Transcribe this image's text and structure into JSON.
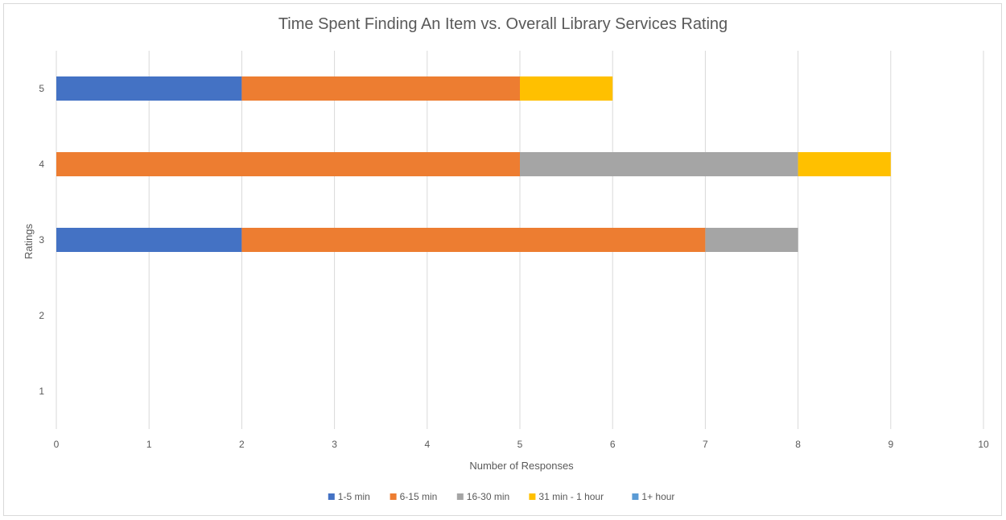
{
  "chart_data": {
    "type": "bar",
    "orientation": "horizontal",
    "stacked": true,
    "title": "Time Spent Finding An Item vs. Overall Library Services Rating",
    "xlabel": "Number of Responses",
    "ylabel": "Ratings",
    "xlim": [
      0,
      10
    ],
    "xticks": [
      "0",
      "1",
      "2",
      "3",
      "4",
      "5",
      "6",
      "7",
      "8",
      "9",
      "10"
    ],
    "categories": [
      "1",
      "2",
      "3",
      "4",
      "5"
    ],
    "series": [
      {
        "name": "1-5 min",
        "color": "#4472C4",
        "values": [
          0,
          0,
          2,
          0,
          2
        ]
      },
      {
        "name": "6-15 min",
        "color": "#ED7D31",
        "values": [
          0,
          0,
          5,
          5,
          3
        ]
      },
      {
        "name": "16-30 min",
        "color": "#A5A5A5",
        "values": [
          0,
          0,
          1,
          3,
          0
        ]
      },
      {
        "name": "31 min - 1 hour",
        "color": "#FFC000",
        "values": [
          0,
          0,
          0,
          1,
          1
        ]
      },
      {
        "name": "1+ hour",
        "color": "#5B9BD5",
        "values": [
          0,
          0,
          0,
          0,
          0
        ]
      }
    ],
    "grid": true,
    "legend_position": "bottom"
  }
}
